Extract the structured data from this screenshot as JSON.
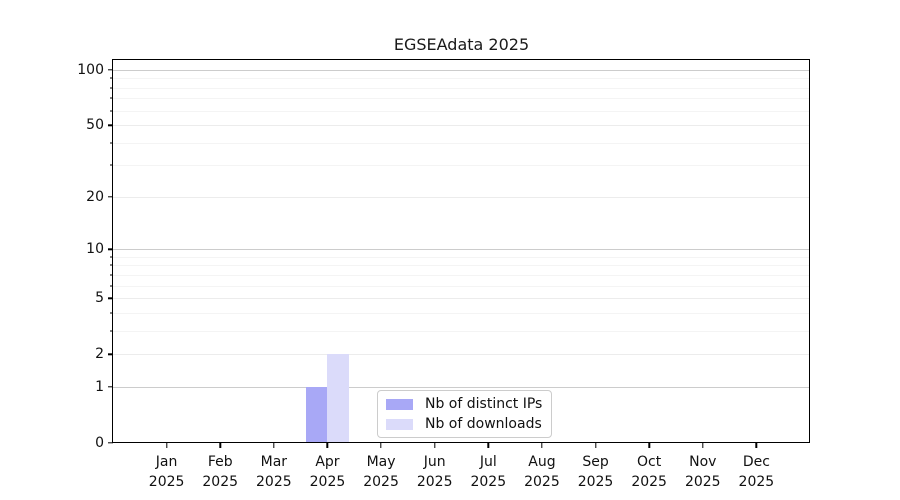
{
  "figure": {
    "title": "EGSEAdata 2025"
  },
  "chart_data": {
    "type": "bar",
    "title": "EGSEAdata 2025",
    "xlabel": "",
    "ylabel": "",
    "categories": [
      "Jan",
      "Feb",
      "Mar",
      "Apr",
      "May",
      "Jun",
      "Jul",
      "Aug",
      "Sep",
      "Oct",
      "Nov",
      "Dec"
    ],
    "category_year_labels": [
      "2025",
      "2025",
      "2025",
      "2025",
      "2025",
      "2025",
      "2025",
      "2025",
      "2025",
      "2025",
      "2025",
      "2025"
    ],
    "series": [
      {
        "name": "Nb of distinct IPs",
        "color": "#a8a8f6",
        "values": [
          0,
          0,
          0,
          1,
          0,
          0,
          0,
          0,
          0,
          0,
          0,
          0
        ]
      },
      {
        "name": "Nb of downloads",
        "color": "#dbdbfa",
        "values": [
          0,
          0,
          0,
          2,
          0,
          0,
          0,
          0,
          0,
          0,
          0,
          0
        ]
      }
    ],
    "yscale": "log1p",
    "ylim": [
      0,
      100
    ],
    "y_ticks": [
      0,
      1,
      2,
      5,
      10,
      20,
      50,
      100
    ],
    "y_major_gridlines": [
      1,
      10,
      100
    ],
    "y_minor_gridlines": [
      3,
      4,
      6,
      7,
      8,
      9,
      30,
      40,
      60,
      70,
      80,
      90
    ],
    "grid": "on",
    "legend_position": "lower center"
  },
  "legend": {
    "items": [
      {
        "label": "Nb of distinct IPs",
        "color": "#a8a8f6"
      },
      {
        "label": "Nb of downloads",
        "color": "#dbdbfa"
      }
    ]
  }
}
